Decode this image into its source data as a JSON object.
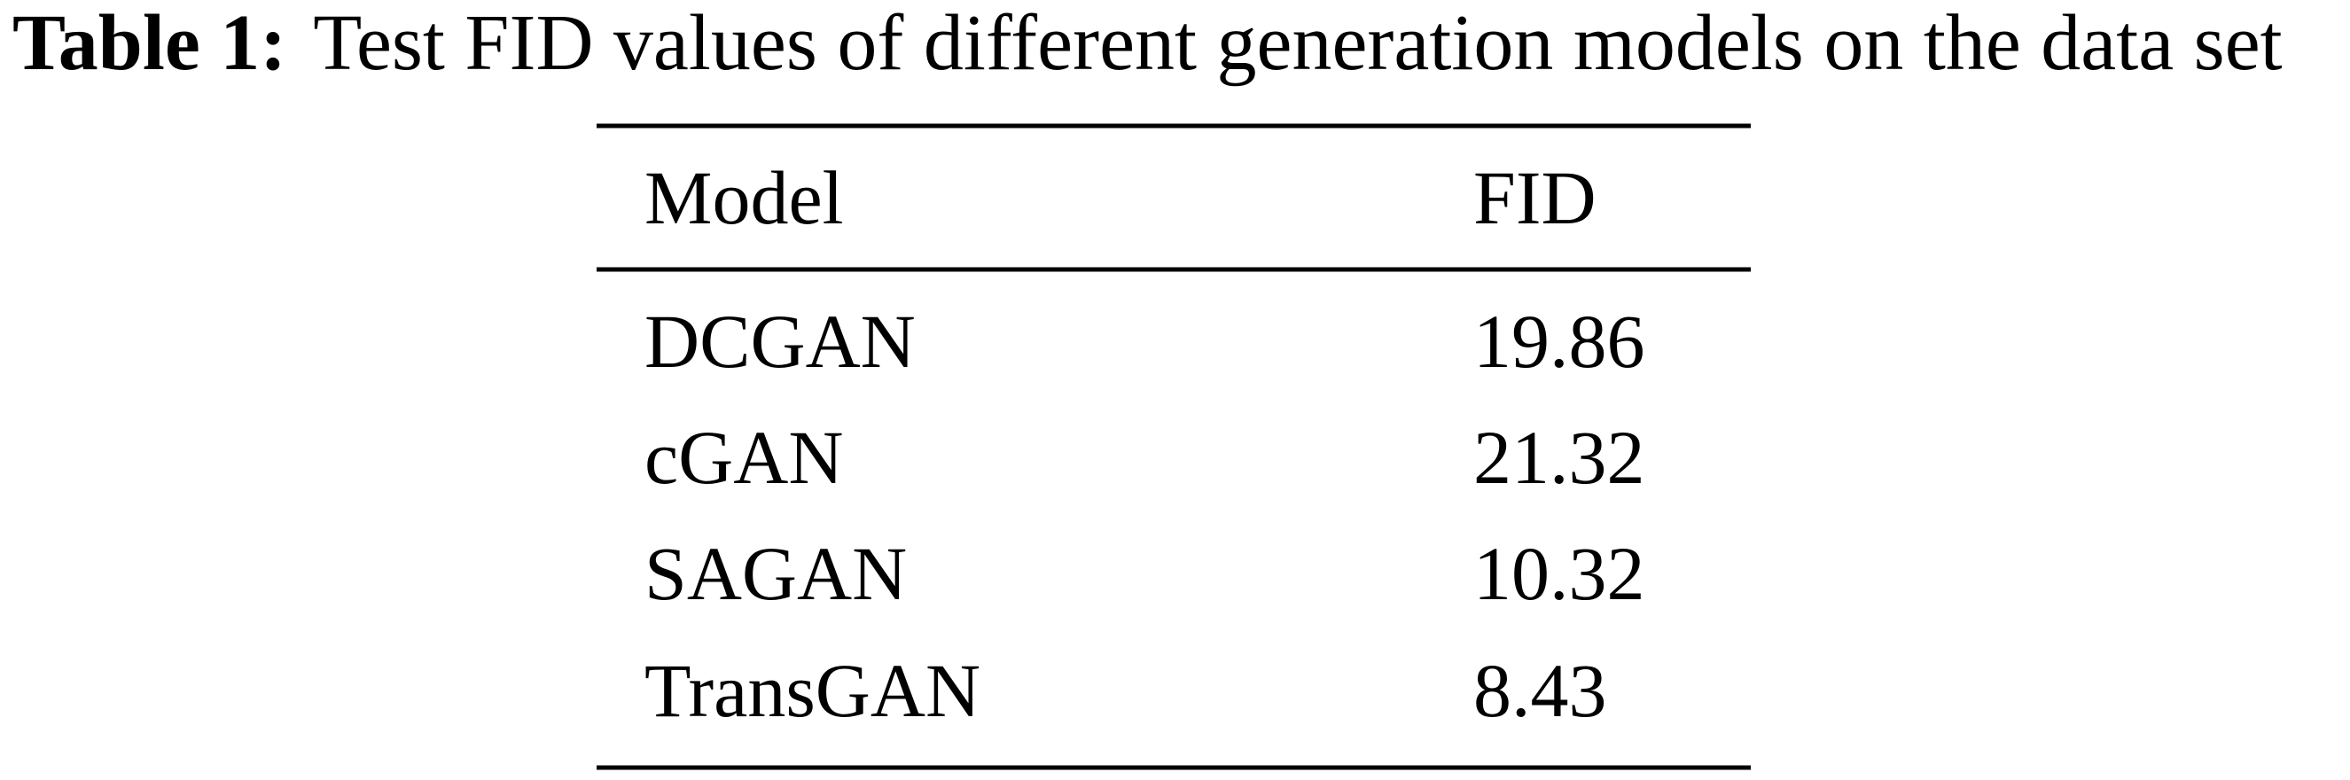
{
  "caption": {
    "label": "Table 1:",
    "text": "Test FID values of different generation models on the data set"
  },
  "table": {
    "header": [
      "Model",
      "FID"
    ],
    "rows": [
      [
        "DCGAN",
        19.86
      ],
      [
        "cGAN",
        21.32
      ],
      [
        "SAGAN",
        10.32
      ],
      [
        "TransGAN",
        8.43
      ]
    ]
  }
}
